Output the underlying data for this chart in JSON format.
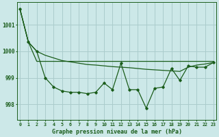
{
  "xlabel": "Graphe pression niveau de la mer (hPa)",
  "bg_color": "#cce8e8",
  "grid_color": "#aacccc",
  "line_color": "#1a5c1a",
  "hours": [
    0,
    1,
    2,
    3,
    4,
    5,
    6,
    7,
    8,
    9,
    10,
    11,
    12,
    13,
    14,
    15,
    16,
    17,
    18,
    19,
    20,
    21,
    22,
    23
  ],
  "line1": [
    1001.6,
    1000.35,
    1000.0,
    999.85,
    999.75,
    999.65,
    999.6,
    999.55,
    999.5,
    999.48,
    999.45,
    999.42,
    999.4,
    999.38,
    999.35,
    999.32,
    999.3,
    999.28,
    999.26,
    999.24,
    999.4,
    999.48,
    999.52,
    999.58
  ],
  "line2": [
    1001.6,
    1000.35,
    1000.0,
    999.0,
    998.65,
    998.5,
    998.45,
    998.45,
    998.4,
    998.45,
    998.8,
    998.55,
    999.55,
    998.55,
    998.55,
    997.85,
    998.6,
    998.65,
    999.35,
    998.9,
    999.45,
    999.4,
    999.4,
    999.58
  ],
  "line3": [
    1001.6,
    1000.35,
    999.62,
    999.62,
    999.62,
    999.62,
    999.62,
    999.62,
    999.62,
    999.62,
    999.62,
    999.62,
    999.62,
    999.62,
    999.62,
    999.62,
    999.62,
    999.62,
    999.62,
    999.62,
    999.62,
    999.62,
    999.62,
    999.62
  ],
  "ylim": [
    997.4,
    1001.85
  ],
  "yticks": [
    998,
    999,
    1000,
    1001
  ],
  "xlim": [
    -0.3,
    23.3
  ]
}
